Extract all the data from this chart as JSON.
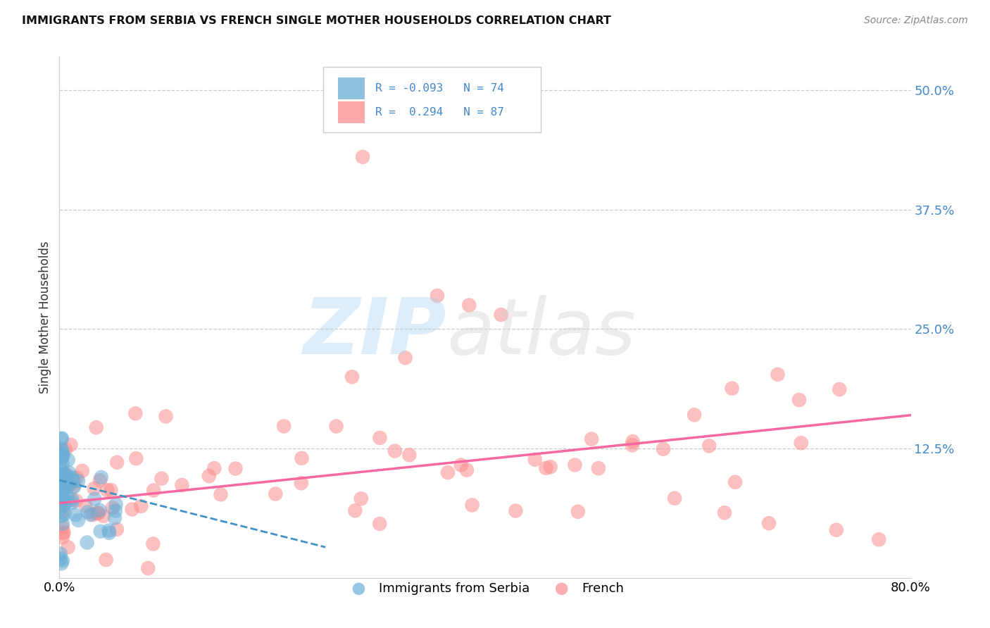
{
  "title": "IMMIGRANTS FROM SERBIA VS FRENCH SINGLE MOTHER HOUSEHOLDS CORRELATION CHART",
  "source": "Source: ZipAtlas.com",
  "ylabel": "Single Mother Households",
  "right_yticklabels": [
    "",
    "12.5%",
    "25.0%",
    "37.5%",
    "50.0%"
  ],
  "right_ytick_vals": [
    0.0,
    0.125,
    0.25,
    0.375,
    0.5
  ],
  "xlim": [
    0.0,
    0.8
  ],
  "ylim": [
    -0.01,
    0.535
  ],
  "legend_text1": "R = -0.093   N = 74",
  "legend_text2": "R =  0.294   N = 87",
  "legend_label1": "Immigrants from Serbia",
  "legend_label2": "French",
  "color_serbia": "#6baed6",
  "color_french": "#fc8d8d",
  "color_serbia_line": "#4292c6",
  "color_french_line": "#f768a1",
  "color_right_axis": "#4488cc",
  "color_grid": "#cccccc",
  "color_spine": "#cccccc",
  "background_color": "#ffffff",
  "serbia_slope": -0.28,
  "serbia_intercept": 0.092,
  "french_slope": 0.115,
  "french_intercept": 0.068,
  "serbia_line_xmax": 0.25,
  "watermark_zip_color": "#aad4f0",
  "watermark_atlas_color": "#d0d0d0",
  "watermark_alpha": 0.4
}
